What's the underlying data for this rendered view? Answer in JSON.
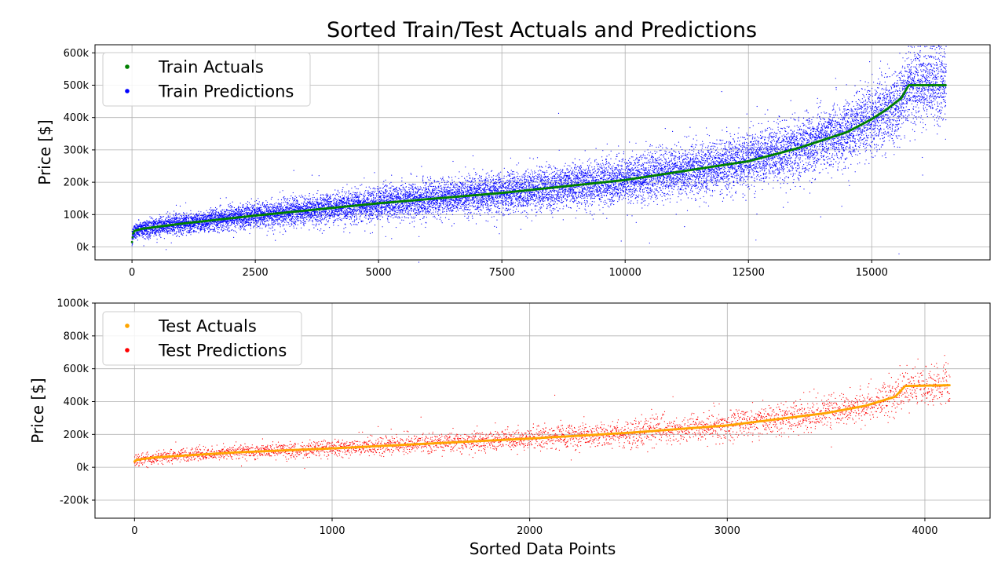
{
  "title": "Sorted Train/Test Actuals and Predictions",
  "chart_data": [
    {
      "type": "scatter",
      "ylabel": "Price [$]",
      "xlabel": "",
      "xlim": [
        -750,
        17400
      ],
      "ylim": [
        -40000,
        625000
      ],
      "xticks": [
        0,
        2500,
        5000,
        7500,
        10000,
        12500,
        15000
      ],
      "xtick_labels": [
        "0",
        "2500",
        "5000",
        "7500",
        "10000",
        "12500",
        "15000"
      ],
      "yticks": [
        0,
        100000,
        200000,
        300000,
        400000,
        500000,
        600000
      ],
      "ytick_labels": [
        "0k",
        "100k",
        "200k",
        "300k",
        "400k",
        "500k",
        "600k"
      ],
      "grid": true,
      "legend_position": "top-left",
      "series": [
        {
          "name": "Train Actuals",
          "color": "#008000",
          "role": "actuals",
          "n": 16512,
          "curve_x": [
            0,
            20,
            50,
            200,
            1000,
            2500,
            5000,
            7500,
            10000,
            12500,
            13500,
            14500,
            15000,
            15300,
            15600,
            15750,
            16512
          ],
          "curve_y": [
            15000,
            40000,
            50000,
            56000,
            72000,
            97000,
            135000,
            167000,
            207000,
            265000,
            305000,
            355000,
            395000,
            425000,
            460000,
            500000,
            500000
          ]
        },
        {
          "name": "Train Predictions",
          "color": "#0000ff",
          "role": "predictions",
          "n": 16512,
          "spread": [
            [
              0,
              12000
            ],
            [
              5000,
              25000
            ],
            [
              10000,
              35000
            ],
            [
              14000,
              45000
            ],
            [
              16512,
              60000
            ]
          ]
        }
      ]
    },
    {
      "type": "scatter",
      "ylabel": "Price [$]",
      "xlabel": "Sorted Data Points",
      "xlim": [
        -200,
        4330
      ],
      "ylim": [
        -310000,
        1000000
      ],
      "xticks": [
        0,
        1000,
        2000,
        3000,
        4000
      ],
      "xtick_labels": [
        "0",
        "1000",
        "2000",
        "3000",
        "4000"
      ],
      "yticks": [
        -200000,
        0,
        200000,
        400000,
        600000,
        800000,
        1000000
      ],
      "ytick_labels": [
        "-200k",
        "0k",
        "200k",
        "400k",
        "600k",
        "800k",
        "1000k"
      ],
      "grid": true,
      "legend_position": "top-left",
      "series": [
        {
          "name": "Test Actuals",
          "color": "#ffa500",
          "role": "actuals",
          "n": 4128,
          "curve_x": [
            0,
            10,
            100,
            500,
            1000,
            1500,
            2000,
            2500,
            3000,
            3500,
            3700,
            3850,
            3900,
            4128
          ],
          "curve_y": [
            35000,
            45000,
            60000,
            90000,
            115000,
            145000,
            175000,
            210000,
            255000,
            330000,
            375000,
            430000,
            495000,
            500000
          ]
        },
        {
          "name": "Test Predictions",
          "color": "#ff0000",
          "role": "predictions",
          "n": 4128,
          "spread": [
            [
              0,
              18000
            ],
            [
              1000,
              25000
            ],
            [
              2000,
              35000
            ],
            [
              3000,
              45000
            ],
            [
              4128,
              60000
            ]
          ]
        }
      ]
    }
  ]
}
